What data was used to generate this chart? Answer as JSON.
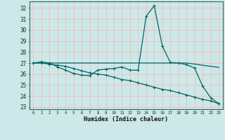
{
  "title": "",
  "xlabel": "Humidex (Indice chaleur)",
  "ylabel": "",
  "background_color": "#cce8e8",
  "grid_color": "#ffb0b0",
  "line_color": "#006666",
  "xlim": [
    -0.5,
    23.5
  ],
  "ylim": [
    22.8,
    32.6
  ],
  "yticks": [
    23,
    24,
    25,
    26,
    27,
    28,
    29,
    30,
    31,
    32
  ],
  "xticks": [
    0,
    1,
    2,
    3,
    4,
    5,
    6,
    7,
    8,
    9,
    10,
    11,
    12,
    13,
    14,
    15,
    16,
    17,
    18,
    19,
    20,
    21,
    22,
    23
  ],
  "series1_x": [
    0,
    1,
    2,
    3,
    4,
    5,
    6,
    7,
    8,
    9,
    10,
    11,
    12,
    13,
    14,
    15,
    16,
    17,
    18,
    19,
    20,
    21,
    22,
    23
  ],
  "series1_y": [
    27.0,
    27.1,
    27.0,
    26.65,
    26.35,
    26.05,
    25.9,
    25.85,
    26.35,
    26.45,
    26.5,
    26.65,
    26.35,
    26.35,
    31.25,
    32.2,
    28.55,
    27.05,
    27.0,
    26.85,
    26.55,
    24.9,
    23.85,
    23.3
  ],
  "series2_x": [
    0,
    1,
    2,
    3,
    4,
    5,
    6,
    7,
    8,
    9,
    10,
    11,
    12,
    13,
    14,
    15,
    16,
    17,
    18,
    19,
    20,
    21,
    22,
    23
  ],
  "series2_y": [
    27.0,
    27.0,
    27.0,
    27.0,
    27.0,
    27.0,
    27.0,
    27.0,
    27.0,
    27.0,
    27.0,
    27.0,
    27.0,
    27.0,
    27.0,
    27.0,
    27.0,
    27.0,
    27.0,
    27.0,
    26.9,
    26.8,
    26.7,
    26.6
  ],
  "series3_x": [
    0,
    1,
    2,
    3,
    4,
    5,
    6,
    7,
    8,
    9,
    10,
    11,
    12,
    13,
    14,
    15,
    16,
    17,
    18,
    19,
    20,
    21,
    22,
    23
  ],
  "series3_y": [
    27.0,
    27.0,
    26.9,
    26.8,
    26.7,
    26.5,
    26.3,
    26.1,
    26.0,
    25.9,
    25.7,
    25.5,
    25.4,
    25.2,
    25.0,
    24.8,
    24.6,
    24.5,
    24.3,
    24.1,
    23.9,
    23.7,
    23.55,
    23.3
  ]
}
